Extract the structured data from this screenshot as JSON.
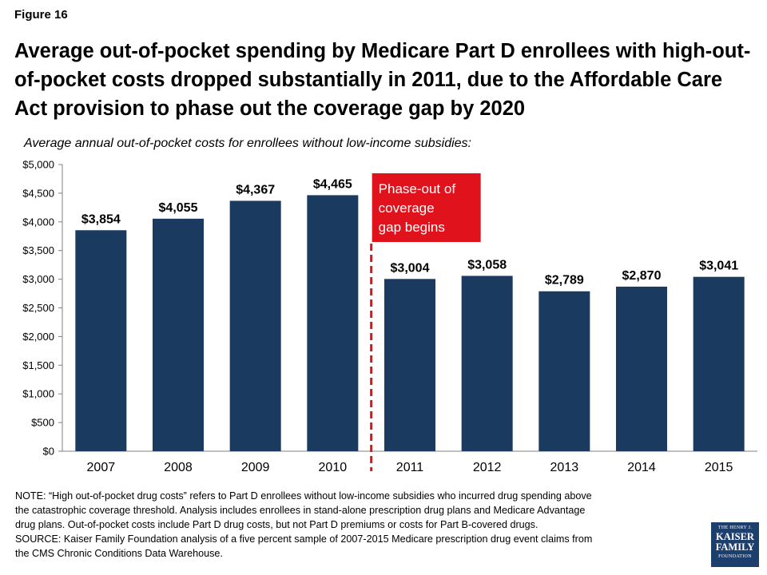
{
  "figure_label": "Figure 16",
  "title": "Average out-of-pocket spending by Medicare Part D enrollees with high-out-of-pocket costs dropped substantially in 2011, due to the Affordable Care Act provision to phase out the coverage gap by 2020",
  "subtitle": "Average annual out-of-pocket costs for enrollees without low-income subsidies:",
  "chart_data": {
    "type": "bar",
    "categories": [
      "2007",
      "2008",
      "2009",
      "2010",
      "2011",
      "2012",
      "2013",
      "2014",
      "2015"
    ],
    "values": [
      3854,
      4055,
      4367,
      4465,
      3004,
      3058,
      2789,
      2870,
      3041
    ],
    "value_labels": [
      "$3,854",
      "$4,055",
      "$4,367",
      "$4,465",
      "$3,004",
      "$3,058",
      "$2,789",
      "$2,870",
      "$3,041"
    ],
    "ylim": [
      0,
      5000
    ],
    "yticks": [
      0,
      500,
      1000,
      1500,
      2000,
      2500,
      3000,
      3500,
      4000,
      4500,
      5000
    ],
    "ytick_labels": [
      "$0",
      "$500",
      "$1,000",
      "$1,500",
      "$2,000",
      "$2,500",
      "$3,000",
      "$3,500",
      "$4,000",
      "$4,500",
      "$5,000"
    ],
    "grid": false,
    "bar_color": "#1a3a5f",
    "annotation": {
      "lines": [
        "Phase-out of",
        "coverage",
        "gap begins"
      ],
      "between": [
        "2010",
        "2011"
      ],
      "color": "#e0121b"
    }
  },
  "note": {
    "line1": "NOTE: “High out-of-pocket drug costs” refers to Part D enrollees without low-income subsidies who incurred drug spending above",
    "line2": "the catastrophic coverage threshold. Analysis includes enrollees in stand-alone prescription drug plans and Medicare Advantage",
    "line3": "drug plans. Out-of-pocket costs include Part D drug costs, but not Part D premiums or costs for Part B-covered drugs.",
    "line4": "SOURCE: Kaiser Family Foundation analysis of a five percent sample of 2007-2015 Medicare prescription drug event claims from",
    "line5": "the CMS Chronic Conditions Data Warehouse."
  },
  "logo": {
    "line1": "THE HENRY J.",
    "line2": "KAISER",
    "line3": "FAMILY",
    "line4": "FOUNDATION",
    "color": "#1d3f6e"
  }
}
